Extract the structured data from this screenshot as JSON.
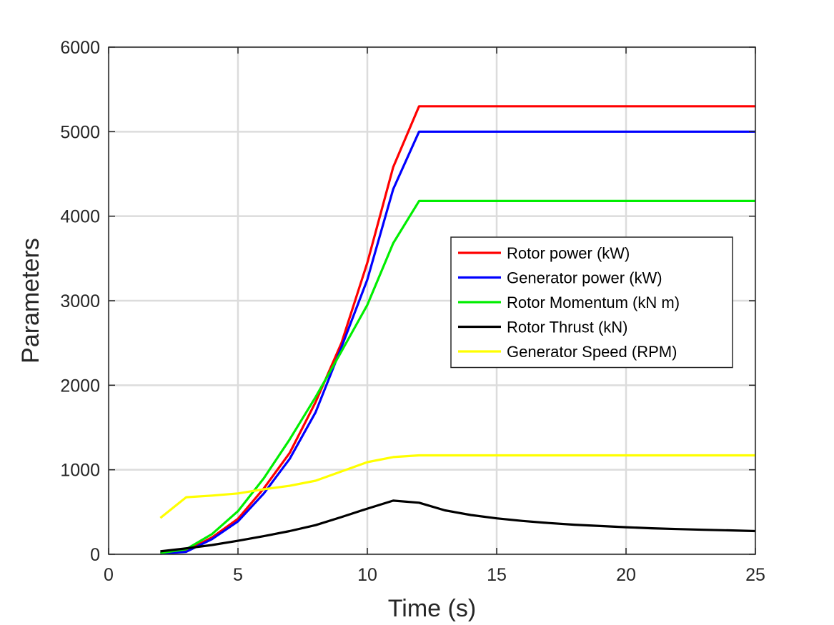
{
  "chart_data": {
    "type": "line",
    "xlabel": "Time (s)",
    "ylabel": "Parameters",
    "xlim": [
      0,
      25
    ],
    "ylim": [
      0,
      6000
    ],
    "xticks": [
      "0",
      "5",
      "10",
      "15",
      "20",
      "25"
    ],
    "yticks": [
      "0",
      "1000",
      "2000",
      "3000",
      "4000",
      "5000",
      "6000"
    ],
    "grid": true,
    "legend_position": "right-center",
    "series": [
      {
        "name": "Rotor power (kW)",
        "color": "#ff0000",
        "points": [
          [
            2,
            10
          ],
          [
            3,
            40
          ],
          [
            4,
            200
          ],
          [
            5,
            420
          ],
          [
            6,
            780
          ],
          [
            7,
            1200
          ],
          [
            8,
            1800
          ],
          [
            9,
            2500
          ],
          [
            10,
            3450
          ],
          [
            11,
            4580
          ],
          [
            12,
            5300
          ],
          [
            25,
            5300
          ]
        ]
      },
      {
        "name": "Generator power (kW)",
        "color": "#0000ff",
        "points": [
          [
            2,
            8
          ],
          [
            3,
            30
          ],
          [
            4,
            180
          ],
          [
            5,
            390
          ],
          [
            6,
            720
          ],
          [
            7,
            1130
          ],
          [
            8,
            1680
          ],
          [
            9,
            2450
          ],
          [
            10,
            3250
          ],
          [
            11,
            4320
          ],
          [
            12,
            5000
          ],
          [
            25,
            5000
          ]
        ]
      },
      {
        "name": "Rotor Momentum (kN m)",
        "color": "#00ee00",
        "points": [
          [
            2,
            15
          ],
          [
            3,
            60
          ],
          [
            4,
            240
          ],
          [
            5,
            510
          ],
          [
            6,
            900
          ],
          [
            7,
            1360
          ],
          [
            8,
            1860
          ],
          [
            9,
            2400
          ],
          [
            10,
            2950
          ],
          [
            11,
            3680
          ],
          [
            12,
            4180
          ],
          [
            25,
            4180
          ]
        ]
      },
      {
        "name": "Rotor Thrust (kN)",
        "color": "#000000",
        "points": [
          [
            2,
            35
          ],
          [
            3,
            70
          ],
          [
            4,
            110
          ],
          [
            5,
            160
          ],
          [
            6,
            215
          ],
          [
            7,
            275
          ],
          [
            8,
            345
          ],
          [
            9,
            440
          ],
          [
            10,
            540
          ],
          [
            11,
            635
          ],
          [
            12,
            610
          ],
          [
            13,
            520
          ],
          [
            14,
            465
          ],
          [
            15,
            425
          ],
          [
            16,
            395
          ],
          [
            17,
            370
          ],
          [
            18,
            350
          ],
          [
            19,
            335
          ],
          [
            20,
            320
          ],
          [
            21,
            308
          ],
          [
            22,
            298
          ],
          [
            23,
            290
          ],
          [
            24,
            283
          ],
          [
            25,
            275
          ]
        ]
      },
      {
        "name": "Generator Speed (RPM)",
        "color": "#ffff00",
        "points": [
          [
            2,
            430
          ],
          [
            3,
            675
          ],
          [
            4,
            695
          ],
          [
            5,
            720
          ],
          [
            6,
            770
          ],
          [
            7,
            810
          ],
          [
            8,
            870
          ],
          [
            9,
            980
          ],
          [
            10,
            1090
          ],
          [
            11,
            1150
          ],
          [
            12,
            1170
          ],
          [
            25,
            1170
          ]
        ]
      }
    ]
  }
}
